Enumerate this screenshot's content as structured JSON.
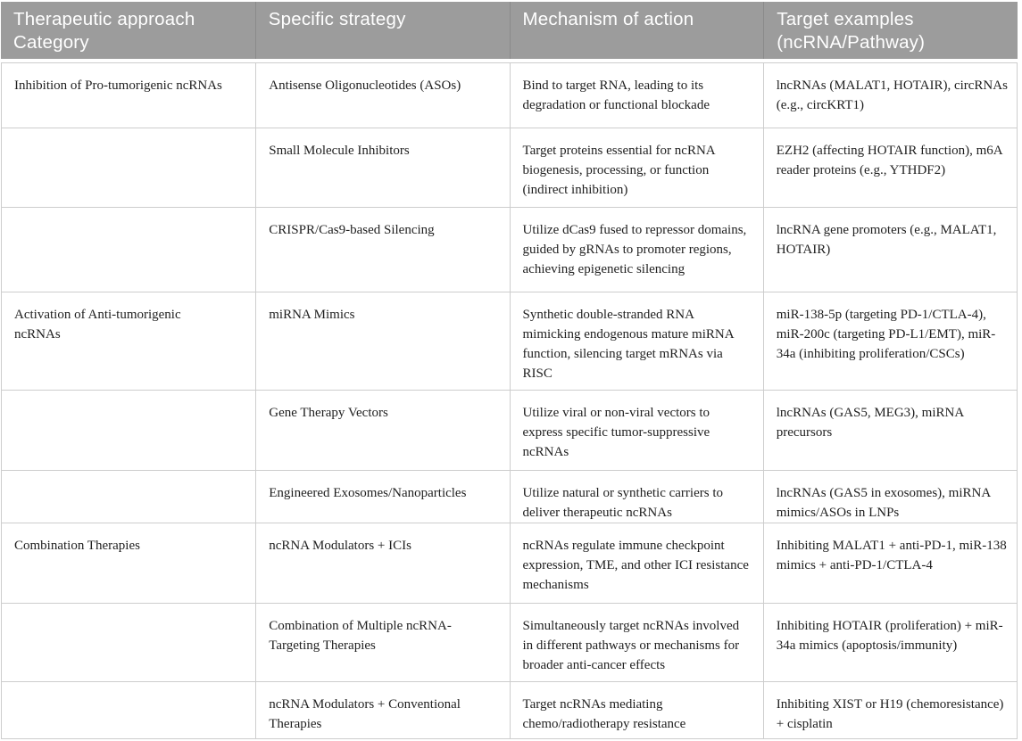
{
  "colors": {
    "header_bg": "#9c9c9c",
    "header_text": "#ffffff",
    "header_divider": "#8a8a8a",
    "border": "#cdcdcd",
    "body_text": "#1f1f1f"
  },
  "table": {
    "header": {
      "columns": [
        "Therapeutic approach Category",
        "Specific strategy",
        "Mechanism of action",
        "Target examples (ncRNA/Pathway)"
      ]
    },
    "rows": [
      {
        "category": "Inhibition of Pro-tumorigenic ncRNAs",
        "strategy": "Antisense Oligonucleotides (ASOs)",
        "mechanism": "Bind to target RNA, leading to its degradation or functional blockade",
        "targets": "lncRNAs (MALAT1, HOTAIR), circRNAs (e.g., circKRT1)"
      },
      {
        "category": "",
        "strategy": "Small Molecule Inhibitors",
        "mechanism": "Target proteins essential for ncRNA biogenesis, processing, or function (indirect inhibition)",
        "targets": "EZH2 (affecting HOTAIR function), m6A reader proteins (e.g., YTHDF2)"
      },
      {
        "category": "",
        "strategy": "CRISPR/Cas9-based Silencing",
        "mechanism": "Utilize dCas9 fused to repressor domains, guided by gRNAs to promoter regions, achieving epigenetic silencing",
        "targets": "lncRNA gene promoters (e.g., MALAT1, HOTAIR)"
      },
      {
        "category": "Activation of Anti-tumorigenic ncRNAs",
        "strategy": "miRNA Mimics",
        "mechanism": "Synthetic double-stranded RNA mimicking endogenous mature miRNA function, silencing target mRNAs via RISC",
        "targets": "miR-138-5p (targeting PD-1/CTLA-4), miR-200c (targeting PD-L1/EMT), miR-34a (inhibiting proliferation/CSCs)"
      },
      {
        "category": "",
        "strategy": "Gene Therapy Vectors",
        "mechanism": "Utilize viral or non-viral vectors to express specific tumor-suppressive ncRNAs",
        "targets": "lncRNAs (GAS5, MEG3), miRNA precursors"
      },
      {
        "category": "",
        "strategy": "Engineered Exosomes/Nanoparticles",
        "mechanism": "Utilize natural or synthetic carriers to deliver therapeutic ncRNAs",
        "targets": "lncRNAs (GAS5 in exosomes), miRNA mimics/ASOs in LNPs"
      },
      {
        "category": "Combination Therapies",
        "strategy": "ncRNA Modulators + ICIs",
        "mechanism": "ncRNAs regulate immune checkpoint expression, TME, and other ICI resistance mechanisms",
        "targets": "Inhibiting MALAT1 + anti-PD-1, miR-138 mimics + anti-PD-1/CTLA-4"
      },
      {
        "category": "",
        "strategy": "Combination of Multiple ncRNA-Targeting Therapies",
        "mechanism": "Simultaneously target ncRNAs involved in different pathways or mechanisms for broader anti-cancer effects",
        "targets": "Inhibiting HOTAIR (proliferation) + miR-34a mimics (apoptosis/immunity)"
      },
      {
        "category": "",
        "strategy": "ncRNA Modulators + Conventional Therapies",
        "mechanism": "Target ncRNAs mediating chemo/radiotherapy resistance",
        "targets": "Inhibiting XIST or H19 (chemoresistance) + cisplatin"
      }
    ]
  }
}
